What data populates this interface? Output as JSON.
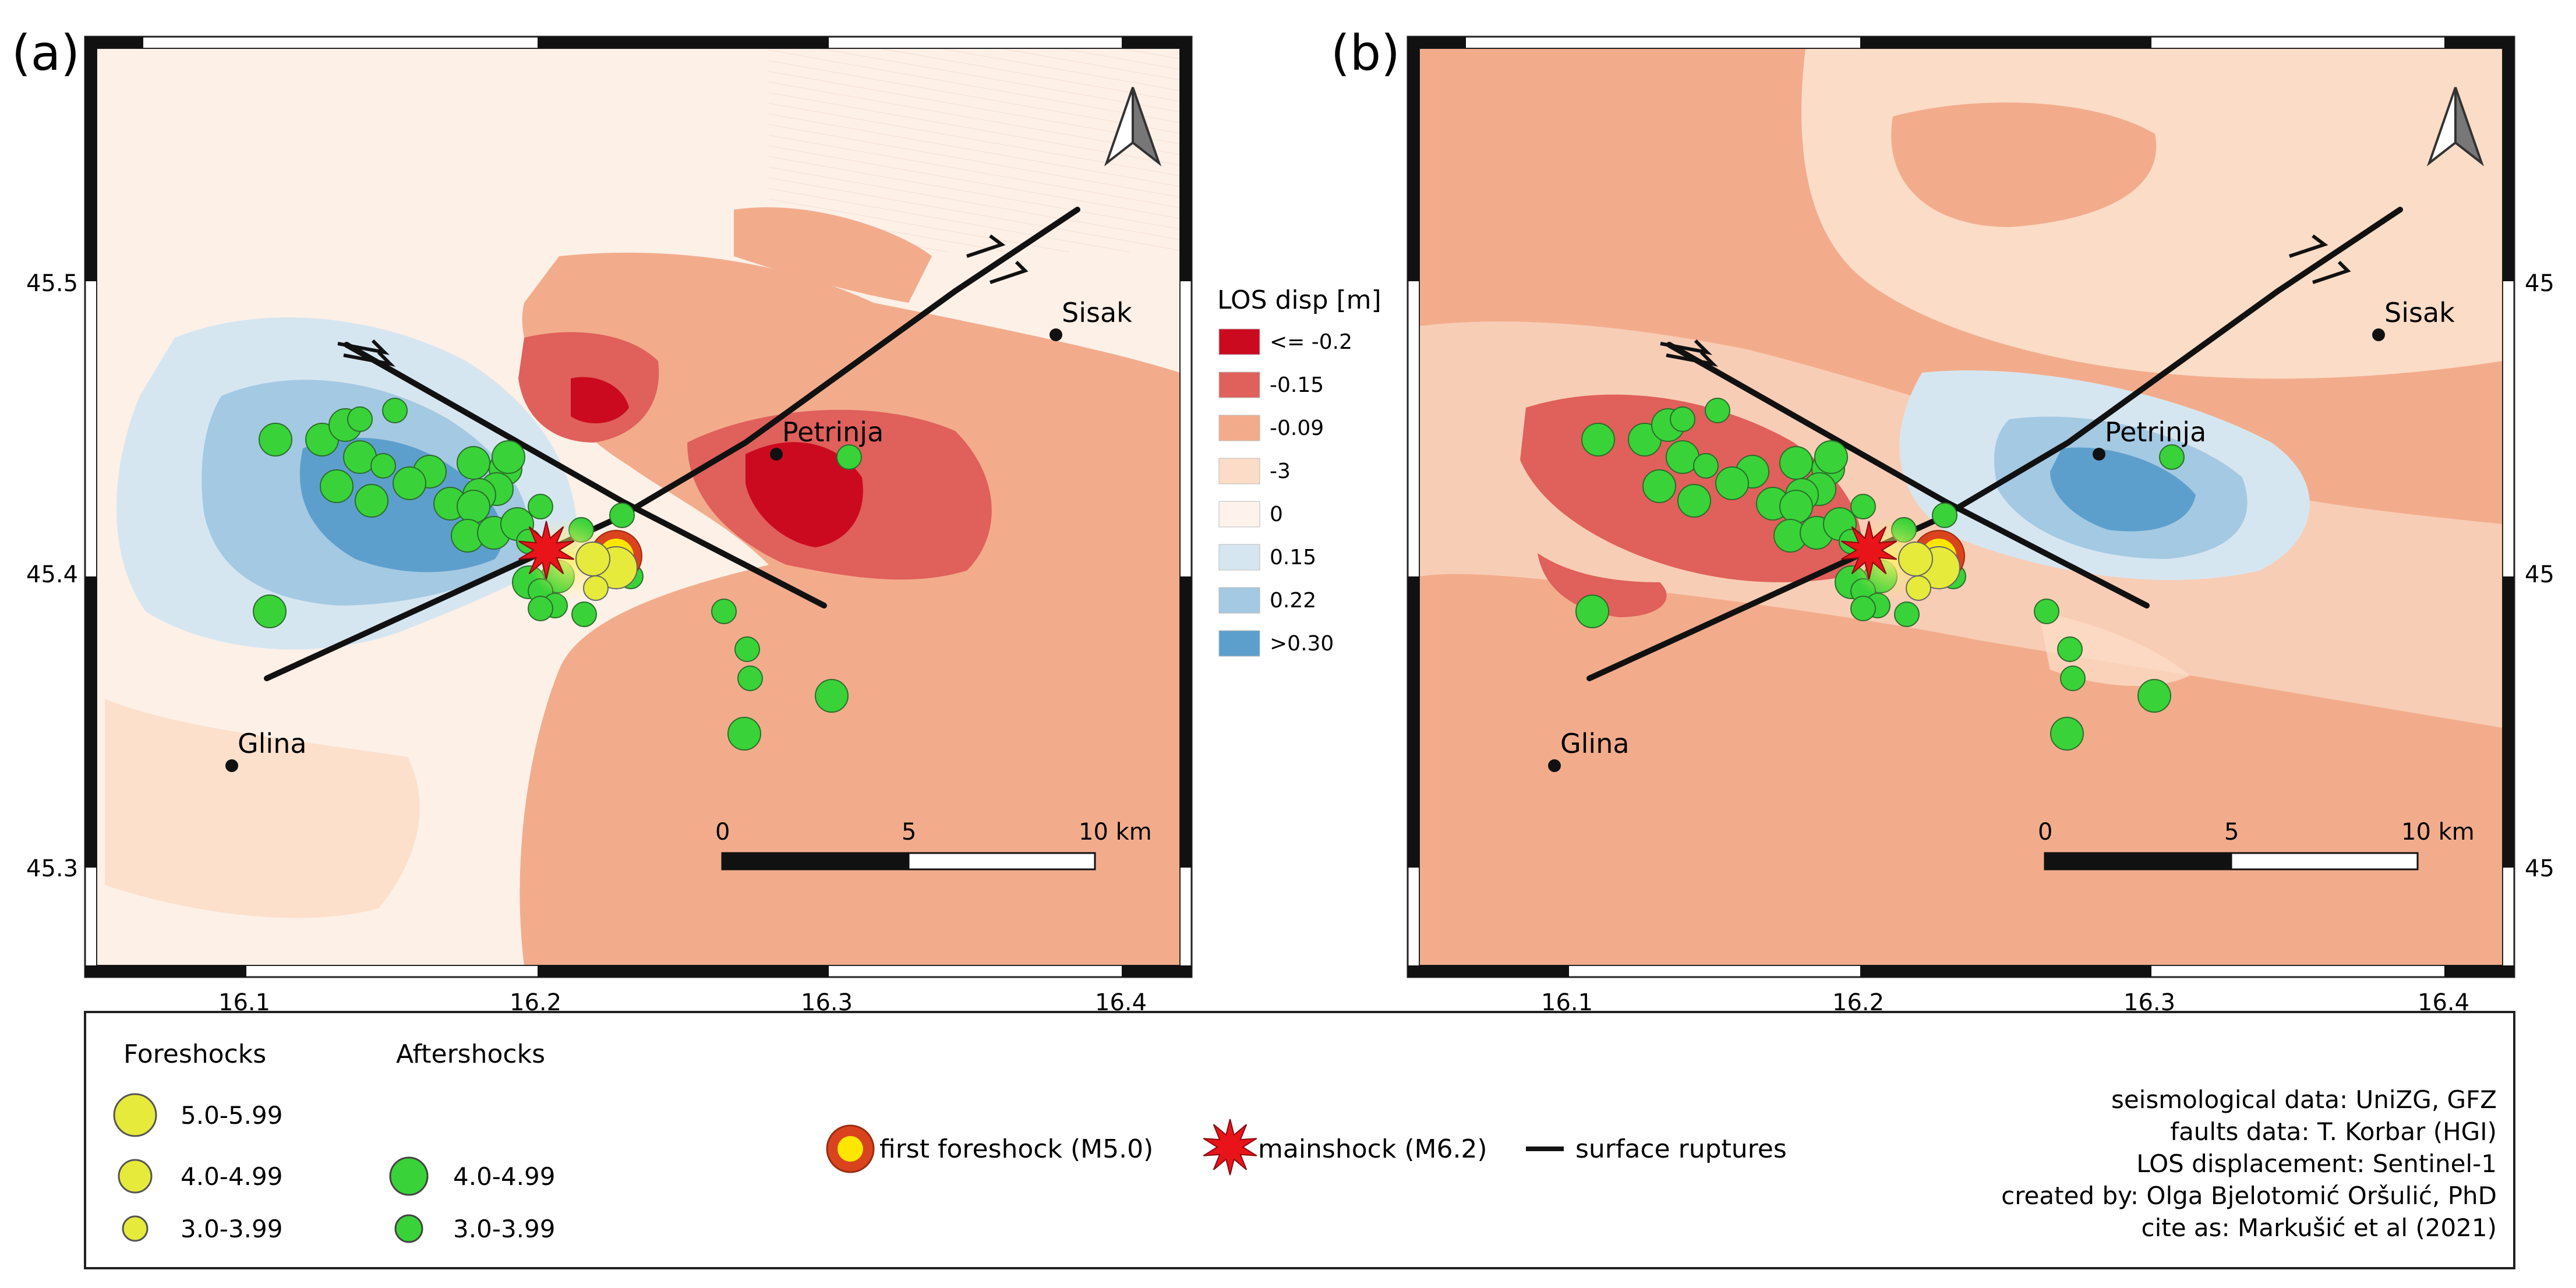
{
  "panels": [
    {
      "label": "(a)",
      "lat_ticks": [
        "45.5",
        "45.4",
        "45.3"
      ],
      "lon_ticks": [
        "16.1",
        "16.2",
        "16.3",
        "16.4"
      ],
      "north_arrow": "north-arrow-icon",
      "cities": [
        {
          "name": "Sisak",
          "lon": 16.378,
          "lat": 45.485
        },
        {
          "name": "Petrinja",
          "lon": 16.282,
          "lat": 45.444
        },
        {
          "name": "Glina",
          "lon": 16.095,
          "lat": 45.337
        }
      ],
      "scalebar": {
        "labels": [
          "0",
          "5",
          "10 km"
        ]
      }
    },
    {
      "label": "(b)",
      "lat_ticks": [
        "45",
        "45",
        "45"
      ],
      "lon_ticks": [
        "16.1",
        "16.2",
        "16.3",
        "16.4"
      ],
      "north_arrow": "north-arrow-icon",
      "cities": [
        {
          "name": "Sisak",
          "lon": 16.378,
          "lat": 45.485
        },
        {
          "name": "Petrinja",
          "lon": 16.282,
          "lat": 45.444
        },
        {
          "name": "Glina",
          "lon": 16.095,
          "lat": 45.337
        }
      ],
      "scalebar": {
        "labels": [
          "0",
          "5",
          "10 km"
        ]
      }
    }
  ],
  "los_legend": {
    "title": "LOS disp [m]",
    "classes": [
      {
        "label": "<= -0.2",
        "color": "#cb0a1f"
      },
      {
        "label": "-0.15",
        "color": "#e0605b"
      },
      {
        "label": "-0.09",
        "color": "#f2ac8c"
      },
      {
        "label": "-3",
        "color": "#fbdcc6"
      },
      {
        "label": "0",
        "color": "#fdf3ec"
      },
      {
        "label": "0.15",
        "color": "#d6e6f1"
      },
      {
        "label": "0.22",
        "color": "#a4c9e2"
      },
      {
        "label": ">0.30",
        "color": "#5d9fcc"
      }
    ]
  },
  "legend": {
    "foreshocks_title": "Foreshocks",
    "aftershocks_title": "Aftershocks",
    "foreshock_classes": [
      "5.0-5.99",
      "4.0-4.99",
      "3.0-3.99"
    ],
    "aftershock_classes": [
      "4.0-4.99",
      "3.0-3.99"
    ],
    "first_foreshock": "first foreshock (M5.0)",
    "mainshock": "mainshock (M6.2)",
    "ruptures": "surface ruptures",
    "credits": [
      "seismological data: UniZG, GFZ",
      "faults data: T. Korbar (HGI)",
      "LOS displacement: Sentinel-1",
      "created by: Olga Bjelotomić Oršulić, PhD",
      "cite as: Markušić et al (2021)"
    ]
  },
  "colors": {
    "foreshock": "#e6ea3a",
    "aftershock": "#39d339",
    "first_foreshock_ring": "#d9441e",
    "mainshock": "#e8141a",
    "fault": "#111111"
  },
  "events": {
    "mainshock": {
      "lon": 16.203,
      "lat": 45.411
    },
    "first_foreshock": {
      "lon": 16.227,
      "lat": 45.409
    },
    "foreshocks": [
      {
        "lon": 16.227,
        "lat": 45.405,
        "mag": "5.0-5.99"
      },
      {
        "lon": 16.219,
        "lat": 45.408,
        "mag": "4.0-4.99"
      },
      {
        "lon": 16.22,
        "lat": 45.398,
        "mag": "3.0-3.99"
      }
    ],
    "aftershocks": [
      {
        "lon": 16.11,
        "lat": 45.449,
        "mag": "4.0-4.99"
      },
      {
        "lon": 16.126,
        "lat": 45.449,
        "mag": "4.0-4.99"
      },
      {
        "lon": 16.134,
        "lat": 45.454,
        "mag": "4.0-4.99"
      },
      {
        "lon": 16.139,
        "lat": 45.456,
        "mag": "3.0-3.99"
      },
      {
        "lon": 16.151,
        "lat": 45.459,
        "mag": "3.0-3.99"
      },
      {
        "lon": 16.139,
        "lat": 45.443,
        "mag": "4.0-4.99"
      },
      {
        "lon": 16.147,
        "lat": 45.44,
        "mag": "3.0-3.99"
      },
      {
        "lon": 16.163,
        "lat": 45.438,
        "mag": "4.0-4.99"
      },
      {
        "lon": 16.178,
        "lat": 45.441,
        "mag": "4.0-4.99"
      },
      {
        "lon": 16.189,
        "lat": 45.439,
        "mag": "4.0-4.99"
      },
      {
        "lon": 16.19,
        "lat": 45.443,
        "mag": "4.0-4.99"
      },
      {
        "lon": 16.186,
        "lat": 45.432,
        "mag": "4.0-4.99"
      },
      {
        "lon": 16.18,
        "lat": 45.43,
        "mag": "4.0-4.99"
      },
      {
        "lon": 16.17,
        "lat": 45.427,
        "mag": "4.0-4.99"
      },
      {
        "lon": 16.178,
        "lat": 45.426,
        "mag": "4.0-4.99"
      },
      {
        "lon": 16.131,
        "lat": 45.433,
        "mag": "4.0-4.99"
      },
      {
        "lon": 16.143,
        "lat": 45.428,
        "mag": "4.0-4.99"
      },
      {
        "lon": 16.156,
        "lat": 45.434,
        "mag": "4.0-4.99"
      },
      {
        "lon": 16.176,
        "lat": 45.416,
        "mag": "4.0-4.99"
      },
      {
        "lon": 16.185,
        "lat": 45.417,
        "mag": "4.0-4.99"
      },
      {
        "lon": 16.193,
        "lat": 45.42,
        "mag": "4.0-4.99"
      },
      {
        "lon": 16.197,
        "lat": 45.414,
        "mag": "3.0-3.99"
      },
      {
        "lon": 16.201,
        "lat": 45.426,
        "mag": "3.0-3.99"
      },
      {
        "lon": 16.215,
        "lat": 45.418,
        "mag": "3.0-3.99"
      },
      {
        "lon": 16.229,
        "lat": 45.423,
        "mag": "3.0-3.99"
      },
      {
        "lon": 16.207,
        "lat": 45.402,
        "mag": "4.0-4.99"
      },
      {
        "lon": 16.197,
        "lat": 45.4,
        "mag": "4.0-4.99"
      },
      {
        "lon": 16.201,
        "lat": 45.397,
        "mag": "3.0-3.99"
      },
      {
        "lon": 16.206,
        "lat": 45.392,
        "mag": "3.0-3.99"
      },
      {
        "lon": 16.201,
        "lat": 45.391,
        "mag": "3.0-3.99"
      },
      {
        "lon": 16.216,
        "lat": 45.389,
        "mag": "3.0-3.99"
      },
      {
        "lon": 16.232,
        "lat": 45.402,
        "mag": "3.0-3.99"
      },
      {
        "lon": 16.108,
        "lat": 45.39,
        "mag": "4.0-4.99"
      },
      {
        "lon": 16.264,
        "lat": 45.39,
        "mag": "3.0-3.99"
      },
      {
        "lon": 16.272,
        "lat": 45.377,
        "mag": "3.0-3.99"
      },
      {
        "lon": 16.273,
        "lat": 45.367,
        "mag": "3.0-3.99"
      },
      {
        "lon": 16.301,
        "lat": 45.361,
        "mag": "4.0-4.99"
      },
      {
        "lon": 16.271,
        "lat": 45.348,
        "mag": "4.0-4.99"
      },
      {
        "lon": 16.307,
        "lat": 45.443,
        "mag": "3.0-3.99"
      }
    ]
  }
}
